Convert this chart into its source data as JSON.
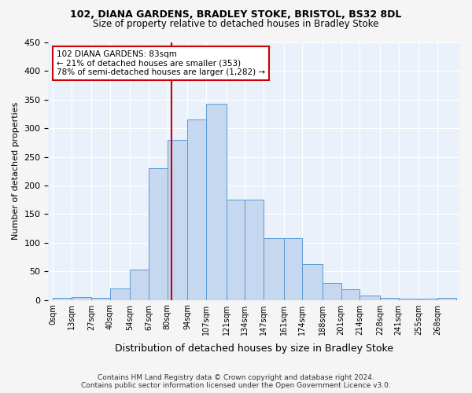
{
  "title1": "102, DIANA GARDENS, BRADLEY STOKE, BRISTOL, BS32 8DL",
  "title2": "Size of property relative to detached houses in Bradley Stoke",
  "xlabel": "Distribution of detached houses by size in Bradley Stoke",
  "ylabel": "Number of detached properties",
  "footnote": "Contains HM Land Registry data © Crown copyright and database right 2024.\nContains public sector information licensed under the Open Government Licence v3.0.",
  "bin_labels": [
    "0sqm",
    "13sqm",
    "27sqm",
    "40sqm",
    "54sqm",
    "67sqm",
    "80sqm",
    "94sqm",
    "107sqm",
    "121sqm",
    "134sqm",
    "147sqm",
    "161sqm",
    "174sqm",
    "188sqm",
    "201sqm",
    "214sqm",
    "228sqm",
    "241sqm",
    "255sqm",
    "268sqm"
  ],
  "bin_edges": [
    0,
    13,
    27,
    40,
    54,
    67,
    80,
    94,
    107,
    121,
    134,
    147,
    161,
    174,
    188,
    201,
    214,
    228,
    241,
    255,
    268,
    281
  ],
  "bar_heights": [
    3,
    5,
    3,
    20,
    53,
    230,
    280,
    315,
    343,
    175,
    175,
    108,
    108,
    62,
    30,
    18,
    7,
    3,
    2,
    2,
    3
  ],
  "bar_color": "#c5d8f0",
  "bar_edge_color": "#5b9bd5",
  "background_color": "#eaf1fb",
  "grid_color": "#ffffff",
  "property_size": 83,
  "vline_color": "#cc0000",
  "annotation_text": "102 DIANA GARDENS: 83sqm\n← 21% of detached houses are smaller (353)\n78% of semi-detached houses are larger (1,282) →",
  "annotation_box_color": "#ffffff",
  "annotation_box_edge": "#cc0000",
  "ylim": [
    0,
    450
  ],
  "yticks": [
    0,
    50,
    100,
    150,
    200,
    250,
    300,
    350,
    400,
    450
  ],
  "fig_bg_color": "#f5f5f5"
}
